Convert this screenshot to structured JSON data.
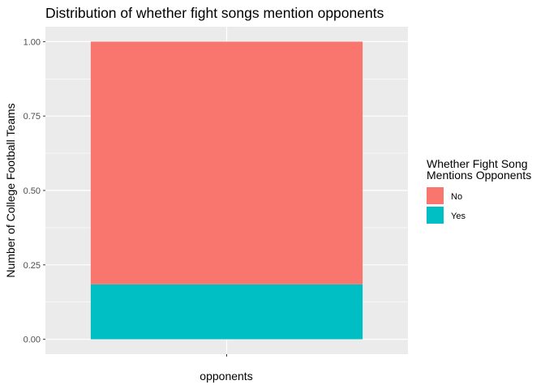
{
  "chart_data": {
    "type": "bar",
    "stacked": true,
    "title": "Distribution of whether fight songs mention opponents",
    "xlabel": "opponents",
    "ylabel": "Number of College Football Teams",
    "categories": [
      ""
    ],
    "series": [
      {
        "name": "No",
        "values": [
          0.8154
        ],
        "color": "#F8766D"
      },
      {
        "name": "Yes",
        "values": [
          0.1846
        ],
        "color": "#00BFC4"
      }
    ],
    "ylim": [
      -0.05,
      1.05
    ],
    "yticks": [
      0.0,
      0.25,
      0.5,
      0.75,
      1.0
    ],
    "ytick_labels": [
      "0.00",
      "0.25",
      "0.50",
      "0.75",
      "1.00"
    ],
    "grid": true,
    "panel_background": "#EBEBEB",
    "legend": {
      "title_lines": [
        "Whether Fight Song",
        "Mentions Opponents"
      ],
      "entries": [
        "No",
        "Yes"
      ],
      "placement": "right"
    }
  }
}
